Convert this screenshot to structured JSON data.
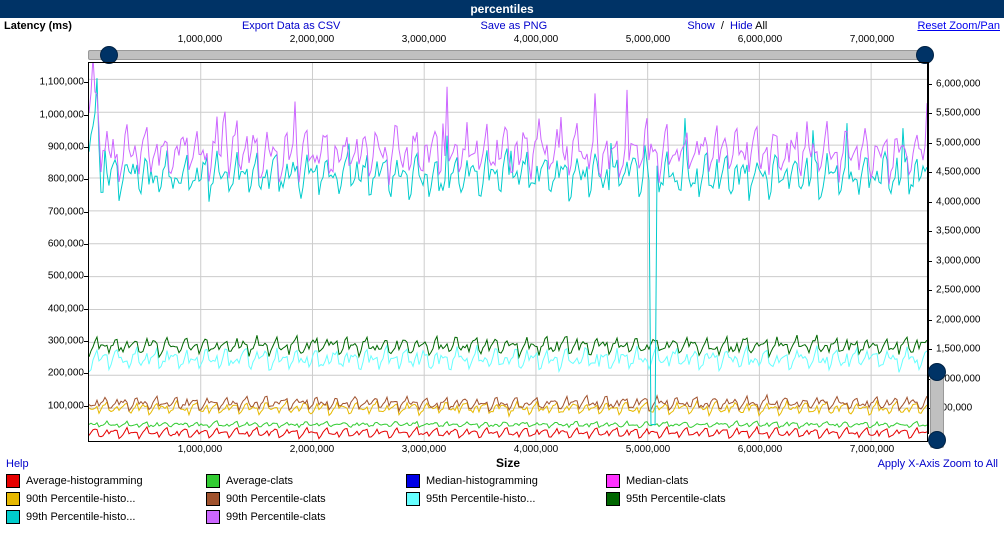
{
  "title": "percentiles",
  "ylabel": "Latency (ms)",
  "xlabel": "Size",
  "toolbar": {
    "export_csv": "Export Data as CSV",
    "save_png": "Save as PNG",
    "show": "Show",
    "hide": "Hide",
    "mode": "All",
    "reset": "Reset Zoom/Pan",
    "help": "Help",
    "apply_zoom": "Apply X-Axis Zoom to All"
  },
  "x_axis": {
    "min": 0,
    "max": 7500000,
    "ticks": [
      1000000,
      2000000,
      3000000,
      4000000,
      5000000,
      6000000,
      7000000
    ],
    "tick_labels": [
      "1,000,000",
      "2,000,000",
      "3,000,000",
      "4,000,000",
      "5,000,000",
      "6,000,000",
      "7,000,000"
    ]
  },
  "y_axis_left": {
    "min": 0,
    "max": 1150000,
    "ticks": [
      100000,
      200000,
      300000,
      400000,
      500000,
      600000,
      700000,
      800000,
      900000,
      1000000,
      1100000
    ],
    "tick_labels": [
      "100,000",
      "200,000",
      "300,000",
      "400,000",
      "500,000",
      "600,000",
      "700,000",
      "800,000",
      "900,000",
      "1,000,000",
      "1,100,000"
    ]
  },
  "y_axis_right": {
    "min": 0,
    "max": 6300000,
    "ticks": [
      500000,
      1000000,
      1500000,
      2000000,
      2500000,
      3000000,
      3500000,
      4000000,
      4500000,
      5000000,
      5500000,
      6000000
    ],
    "tick_labels": [
      "500,000",
      "1,000,000",
      "1,500,000",
      "2,000,000",
      "2,500,000",
      "3,000,000",
      "3,500,000",
      "4,000,000",
      "4,500,000",
      "5,000,000",
      "5,500,000",
      "6,000,000"
    ]
  },
  "grid_color": "#cccccc",
  "background_color": "#ffffff",
  "legend": [
    {
      "label": "Average-histogramming",
      "color": "#e60000"
    },
    {
      "label": "Average-clats",
      "color": "#33cc33"
    },
    {
      "label": "Median-histogramming",
      "color": "#0000e6"
    },
    {
      "label": "Median-clats",
      "color": "#ff33ff"
    },
    {
      "label": "90th Percentile-histo...",
      "color": "#e6b800"
    },
    {
      "label": "90th Percentile-clats",
      "color": "#a0522d"
    },
    {
      "label": "95th Percentile-histo...",
      "color": "#66ffff"
    },
    {
      "label": "95th Percentile-clats",
      "color": "#006600"
    },
    {
      "label": "99th Percentile-histo...",
      "color": "#00cccc"
    },
    {
      "label": "99th Percentile-clats",
      "color": "#cc66ff"
    }
  ],
  "series": [
    {
      "name": "Average-histogramming",
      "color": "#e60000",
      "baseline": 25000,
      "amplitude": 15000,
      "noise": 2000,
      "spike_at": -1
    },
    {
      "name": "Average-clats",
      "color": "#33cc33",
      "baseline": 50000,
      "amplitude": 8000,
      "noise": 3000,
      "spike_at": -1
    },
    {
      "name": "90th Percentile-histo",
      "color": "#e6b800",
      "baseline": 100000,
      "amplitude": 18000,
      "noise": 5000,
      "spike_at": -1
    },
    {
      "name": "90th Percentile-clats",
      "color": "#a0522d",
      "baseline": 115000,
      "amplitude": 18000,
      "noise": 6000,
      "spike_at": -1
    },
    {
      "name": "95th Percentile-histo",
      "color": "#66ffff",
      "baseline": 250000,
      "amplitude": 30000,
      "noise": 10000,
      "spike_at": -1
    },
    {
      "name": "95th Percentile-clats",
      "color": "#006600",
      "baseline": 290000,
      "amplitude": 25000,
      "noise": 8000,
      "spike_at": -1
    },
    {
      "name": "99th Percentile-histo",
      "color": "#00cccc",
      "baseline": 810000,
      "amplitude": 60000,
      "noise": 25000,
      "spike_at": 5050000,
      "spike_val": 50000
    },
    {
      "name": "99th Percentile-clats",
      "color": "#cc66ff",
      "baseline": 880000,
      "amplitude": 70000,
      "noise": 30000,
      "spike_at": -1
    }
  ]
}
